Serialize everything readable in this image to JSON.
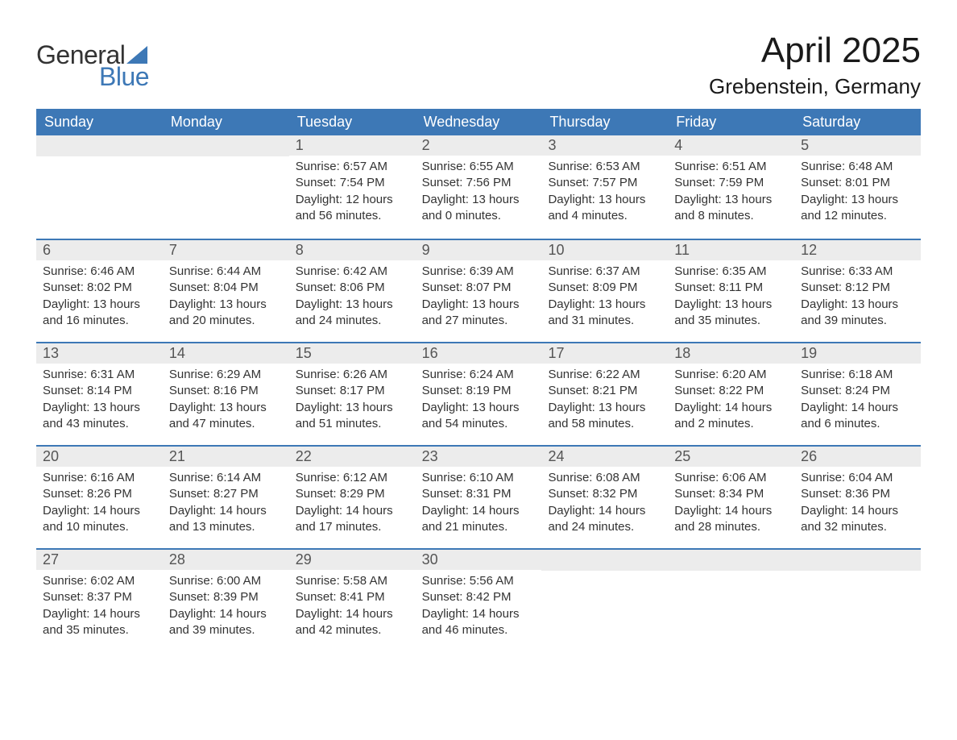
{
  "logo": {
    "general": "General",
    "blue": "Blue",
    "sail_color": "#3d78b6"
  },
  "title": "April 2025",
  "location": "Grebenstein, Germany",
  "colors": {
    "header_bg": "#3d78b6",
    "header_text": "#ffffff",
    "daynum_bg": "#ececec",
    "daynum_text": "#555555",
    "body_text": "#333333",
    "week_border": "#3d78b6",
    "page_bg": "#ffffff"
  },
  "weekdays": [
    "Sunday",
    "Monday",
    "Tuesday",
    "Wednesday",
    "Thursday",
    "Friday",
    "Saturday"
  ],
  "weeks": [
    [
      {
        "day": "",
        "sunrise": "",
        "sunset": "",
        "daylight": ""
      },
      {
        "day": "",
        "sunrise": "",
        "sunset": "",
        "daylight": ""
      },
      {
        "day": "1",
        "sunrise": "6:57 AM",
        "sunset": "7:54 PM",
        "daylight": "12 hours and 56 minutes."
      },
      {
        "day": "2",
        "sunrise": "6:55 AM",
        "sunset": "7:56 PM",
        "daylight": "13 hours and 0 minutes."
      },
      {
        "day": "3",
        "sunrise": "6:53 AM",
        "sunset": "7:57 PM",
        "daylight": "13 hours and 4 minutes."
      },
      {
        "day": "4",
        "sunrise": "6:51 AM",
        "sunset": "7:59 PM",
        "daylight": "13 hours and 8 minutes."
      },
      {
        "day": "5",
        "sunrise": "6:48 AM",
        "sunset": "8:01 PM",
        "daylight": "13 hours and 12 minutes."
      }
    ],
    [
      {
        "day": "6",
        "sunrise": "6:46 AM",
        "sunset": "8:02 PM",
        "daylight": "13 hours and 16 minutes."
      },
      {
        "day": "7",
        "sunrise": "6:44 AM",
        "sunset": "8:04 PM",
        "daylight": "13 hours and 20 minutes."
      },
      {
        "day": "8",
        "sunrise": "6:42 AM",
        "sunset": "8:06 PM",
        "daylight": "13 hours and 24 minutes."
      },
      {
        "day": "9",
        "sunrise": "6:39 AM",
        "sunset": "8:07 PM",
        "daylight": "13 hours and 27 minutes."
      },
      {
        "day": "10",
        "sunrise": "6:37 AM",
        "sunset": "8:09 PM",
        "daylight": "13 hours and 31 minutes."
      },
      {
        "day": "11",
        "sunrise": "6:35 AM",
        "sunset": "8:11 PM",
        "daylight": "13 hours and 35 minutes."
      },
      {
        "day": "12",
        "sunrise": "6:33 AM",
        "sunset": "8:12 PM",
        "daylight": "13 hours and 39 minutes."
      }
    ],
    [
      {
        "day": "13",
        "sunrise": "6:31 AM",
        "sunset": "8:14 PM",
        "daylight": "13 hours and 43 minutes."
      },
      {
        "day": "14",
        "sunrise": "6:29 AM",
        "sunset": "8:16 PM",
        "daylight": "13 hours and 47 minutes."
      },
      {
        "day": "15",
        "sunrise": "6:26 AM",
        "sunset": "8:17 PM",
        "daylight": "13 hours and 51 minutes."
      },
      {
        "day": "16",
        "sunrise": "6:24 AM",
        "sunset": "8:19 PM",
        "daylight": "13 hours and 54 minutes."
      },
      {
        "day": "17",
        "sunrise": "6:22 AM",
        "sunset": "8:21 PM",
        "daylight": "13 hours and 58 minutes."
      },
      {
        "day": "18",
        "sunrise": "6:20 AM",
        "sunset": "8:22 PM",
        "daylight": "14 hours and 2 minutes."
      },
      {
        "day": "19",
        "sunrise": "6:18 AM",
        "sunset": "8:24 PM",
        "daylight": "14 hours and 6 minutes."
      }
    ],
    [
      {
        "day": "20",
        "sunrise": "6:16 AM",
        "sunset": "8:26 PM",
        "daylight": "14 hours and 10 minutes."
      },
      {
        "day": "21",
        "sunrise": "6:14 AM",
        "sunset": "8:27 PM",
        "daylight": "14 hours and 13 minutes."
      },
      {
        "day": "22",
        "sunrise": "6:12 AM",
        "sunset": "8:29 PM",
        "daylight": "14 hours and 17 minutes."
      },
      {
        "day": "23",
        "sunrise": "6:10 AM",
        "sunset": "8:31 PM",
        "daylight": "14 hours and 21 minutes."
      },
      {
        "day": "24",
        "sunrise": "6:08 AM",
        "sunset": "8:32 PM",
        "daylight": "14 hours and 24 minutes."
      },
      {
        "day": "25",
        "sunrise": "6:06 AM",
        "sunset": "8:34 PM",
        "daylight": "14 hours and 28 minutes."
      },
      {
        "day": "26",
        "sunrise": "6:04 AM",
        "sunset": "8:36 PM",
        "daylight": "14 hours and 32 minutes."
      }
    ],
    [
      {
        "day": "27",
        "sunrise": "6:02 AM",
        "sunset": "8:37 PM",
        "daylight": "14 hours and 35 minutes."
      },
      {
        "day": "28",
        "sunrise": "6:00 AM",
        "sunset": "8:39 PM",
        "daylight": "14 hours and 39 minutes."
      },
      {
        "day": "29",
        "sunrise": "5:58 AM",
        "sunset": "8:41 PM",
        "daylight": "14 hours and 42 minutes."
      },
      {
        "day": "30",
        "sunrise": "5:56 AM",
        "sunset": "8:42 PM",
        "daylight": "14 hours and 46 minutes."
      },
      {
        "day": "",
        "sunrise": "",
        "sunset": "",
        "daylight": ""
      },
      {
        "day": "",
        "sunrise": "",
        "sunset": "",
        "daylight": ""
      },
      {
        "day": "",
        "sunrise": "",
        "sunset": "",
        "daylight": ""
      }
    ]
  ],
  "labels": {
    "sunrise": "Sunrise:",
    "sunset": "Sunset:",
    "daylight": "Daylight:"
  }
}
